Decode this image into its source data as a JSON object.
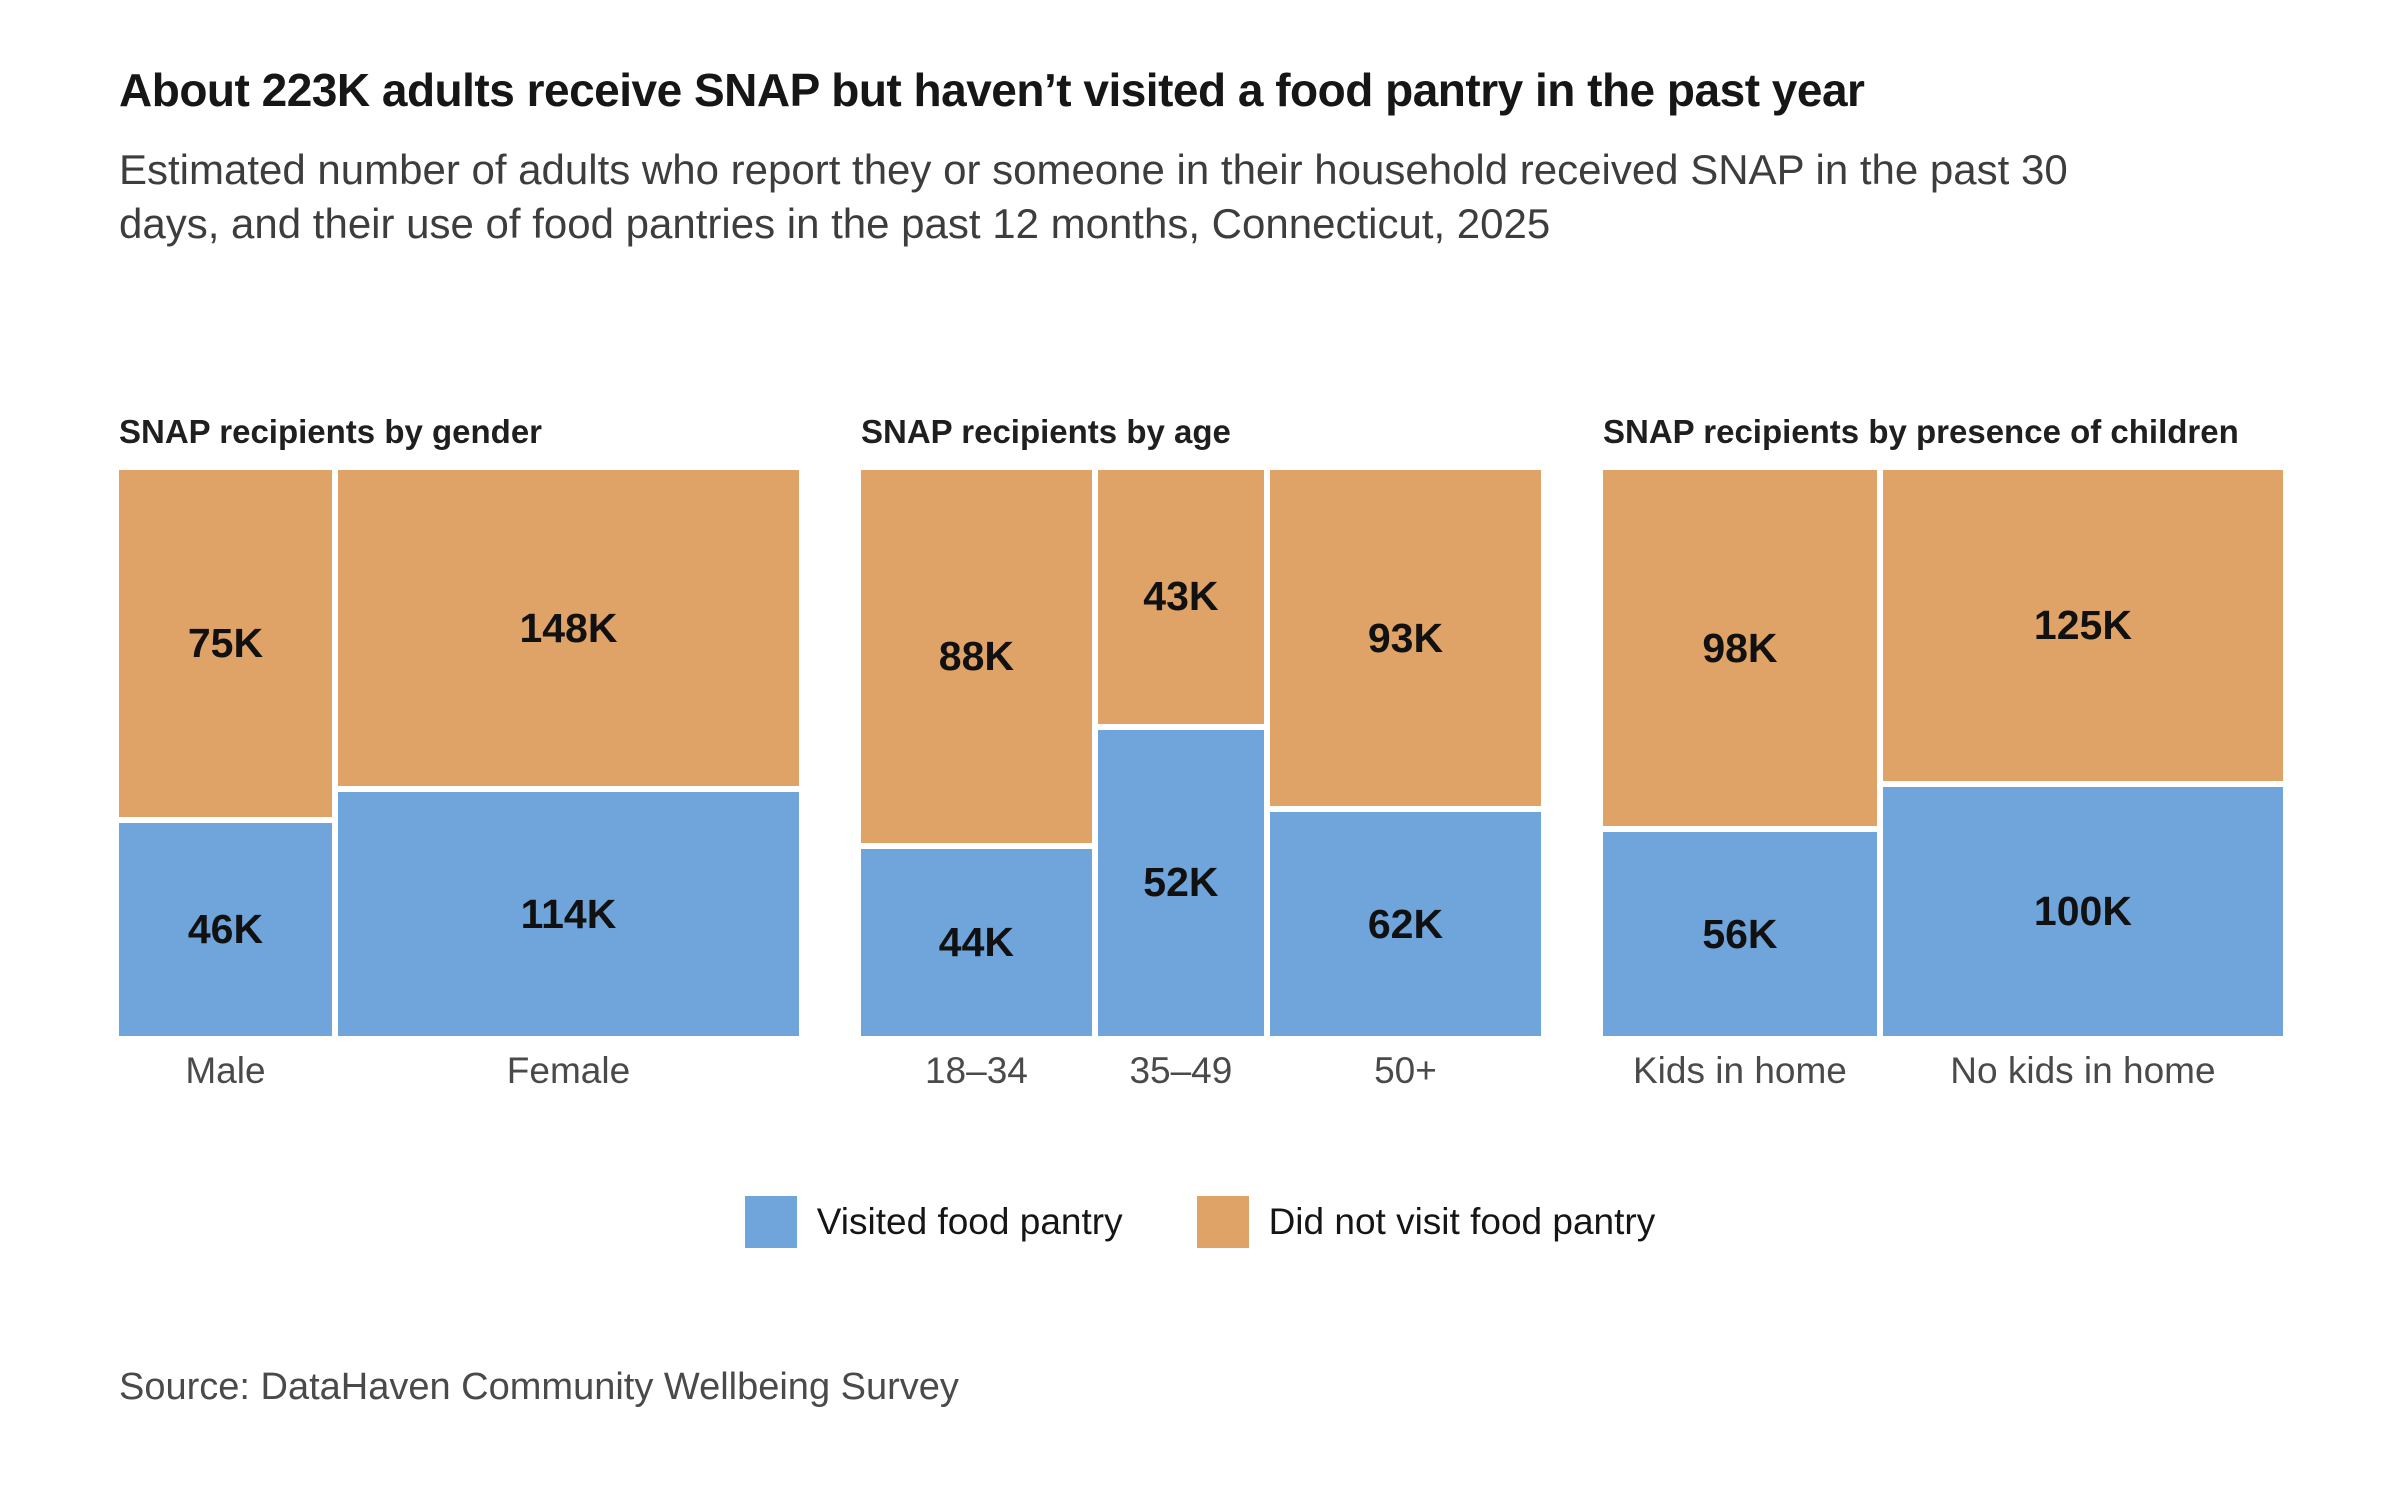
{
  "page": {
    "title": "About 223K adults receive SNAP but haven’t visited a food pantry in the past year",
    "subtitle": "Estimated number of adults who report they or someone in their household received SNAP in the past 30 days, and their use of food pantries in the past 12 months, Connecticut, 2025",
    "source": "Source: DataHaven Community Wellbeing Survey"
  },
  "legend": {
    "items": [
      {
        "label": "Visited food pantry",
        "color": "#6FA5DB"
      },
      {
        "label": "Did not visit food pantry",
        "color": "#E0A367"
      }
    ],
    "position": "bottom"
  },
  "chart_data": {
    "type": "mosaic",
    "unit": "K",
    "value_labels": true,
    "series_names": [
      "Visited food pantry",
      "Did not visit food pantry"
    ],
    "colors": {
      "visited": "#6FA5DB",
      "not_visited": "#E0A367"
    },
    "layout": {
      "column_width_proportional_to": "category total",
      "column_height_normalized": true,
      "visited_on_bottom": true,
      "grid": false
    },
    "panels": [
      {
        "title": "SNAP recipients by gender",
        "categories": [
          {
            "label": "Male",
            "visited": 46,
            "not_visited": 75
          },
          {
            "label": "Female",
            "visited": 114,
            "not_visited": 148
          }
        ]
      },
      {
        "title": "SNAP recipients by age",
        "categories": [
          {
            "label": "18–34",
            "visited": 44,
            "not_visited": 88
          },
          {
            "label": "35–49",
            "visited": 52,
            "not_visited": 43
          },
          {
            "label": "50+",
            "visited": 62,
            "not_visited": 93
          }
        ]
      },
      {
        "title": "SNAP recipients by presence of children",
        "categories": [
          {
            "label": "Kids in home",
            "visited": 56,
            "not_visited": 98
          },
          {
            "label": "No kids in home",
            "visited": 100,
            "not_visited": 125
          }
        ]
      }
    ]
  }
}
